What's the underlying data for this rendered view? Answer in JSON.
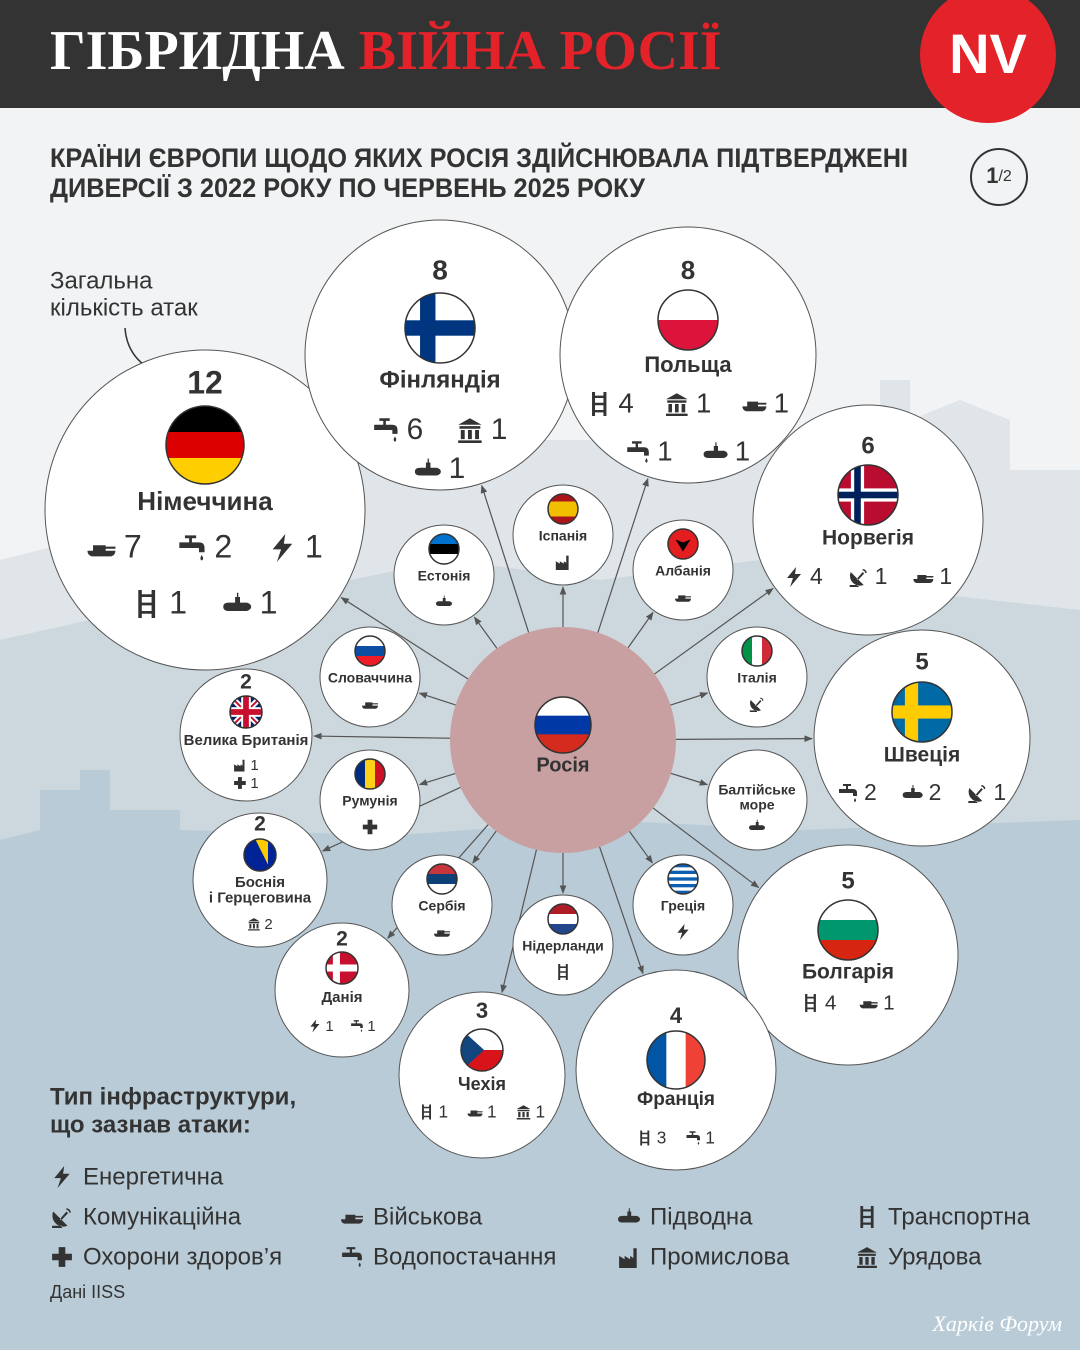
{
  "header": {
    "title_1": "ГІБРИДНА",
    "title_2": "ВІЙНА РОСІЇ",
    "logo": "NV"
  },
  "subtitle": [
    "КРАЇНИ ЄВРОПИ ЩОДО ЯКИХ РОСІЯ ЗДІЙСНЮВАЛА ПІДТВЕРДЖЕНІ",
    "ДИВЕРСІЇ З 2022 РОКУ ПО ЧЕРВЕНЬ 2025 РОКУ"
  ],
  "page": {
    "current": "1",
    "total": "/2"
  },
  "annotation": [
    "Загальна",
    "кількість атак"
  ],
  "center": {
    "name": "Росія"
  },
  "nodes": [
    {
      "name": [
        "Німеччина"
      ],
      "total": 12,
      "attacks": [
        [
          {
            "icon": 2,
            "count": 7
          },
          {
            "icon": 6,
            "count": 2
          },
          {
            "icon": 0,
            "count": 1
          }
        ],
        [
          {
            "icon": 4,
            "count": 1
          },
          {
            "icon": 3,
            "count": 1
          }
        ]
      ]
    },
    {
      "name": [
        "Фінляндія"
      ],
      "total": 8,
      "attacks": [
        [
          {
            "icon": 6,
            "count": 6
          },
          {
            "icon": 8,
            "count": 1
          }
        ],
        [
          {
            "icon": 3,
            "count": 1
          }
        ]
      ]
    },
    {
      "name": [
        "Польща"
      ],
      "total": 8,
      "attacks": [
        [
          {
            "icon": 4,
            "count": 4
          },
          {
            "icon": 8,
            "count": 1
          },
          {
            "icon": 2,
            "count": 1
          }
        ],
        [
          {
            "icon": 6,
            "count": 1
          },
          {
            "icon": 3,
            "count": 1
          }
        ]
      ]
    },
    {
      "name": [
        "Норвегія"
      ],
      "total": 6,
      "attacks": [
        [
          {
            "icon": 0,
            "count": 4
          },
          {
            "icon": 1,
            "count": 1
          },
          {
            "icon": 2,
            "count": 1
          }
        ]
      ]
    },
    {
      "name": [
        "Швеція"
      ],
      "total": 5,
      "attacks": [
        [
          {
            "icon": 6,
            "count": 2
          },
          {
            "icon": 3,
            "count": 2
          },
          {
            "icon": 1,
            "count": 1
          }
        ]
      ]
    },
    {
      "name": [
        "Болгарія"
      ],
      "total": 5,
      "attacks": [
        [
          {
            "icon": 4,
            "count": 4
          },
          {
            "icon": 2,
            "count": 1
          }
        ]
      ]
    },
    {
      "name": [
        "Франція"
      ],
      "total": 4,
      "attacks": [
        [
          {
            "icon": 4,
            "count": 3
          },
          {
            "icon": 6,
            "count": 1
          }
        ]
      ]
    },
    {
      "name": [
        "Чехія"
      ],
      "total": 3,
      "attacks": [
        [
          {
            "icon": 4,
            "count": 1
          },
          {
            "icon": 2,
            "count": 1
          },
          {
            "icon": 8,
            "count": 1
          }
        ]
      ]
    },
    {
      "name": [
        "Данія"
      ],
      "total": 2,
      "attacks": [
        [
          {
            "icon": 0,
            "count": 1
          },
          {
            "icon": 6,
            "count": 1
          }
        ]
      ]
    },
    {
      "name": [
        "Боснія",
        "і Герцеговина"
      ],
      "total": 2,
      "attacks": [
        [
          {
            "icon": 8,
            "count": 2
          }
        ]
      ]
    },
    {
      "name": [
        "Велика Британія"
      ],
      "total": 2,
      "attacks": [
        [
          {
            "icon": 7,
            "count": 1
          }
        ],
        [
          {
            "icon": 5,
            "count": 1
          }
        ]
      ]
    },
    {
      "name": [
        "Естонія"
      ],
      "attacks": [
        [
          {
            "icon": 3
          }
        ]
      ]
    },
    {
      "name": [
        "Іспанія"
      ],
      "attacks": [
        [
          {
            "icon": 7
          }
        ]
      ]
    },
    {
      "name": [
        "Албанія"
      ],
      "attacks": [
        [
          {
            "icon": 2
          }
        ]
      ]
    },
    {
      "name": [
        "Словаччина"
      ],
      "attacks": [
        [
          {
            "icon": 2
          }
        ]
      ]
    },
    {
      "name": [
        "Італія"
      ],
      "attacks": [
        [
          {
            "icon": 1
          }
        ]
      ]
    },
    {
      "name": [
        "Румунія"
      ],
      "attacks": [
        [
          {
            "icon": 5
          }
        ]
      ]
    },
    {
      "name": [
        "Балтійське",
        "море"
      ],
      "attacks": [
        [
          {
            "icon": 3
          }
        ]
      ]
    },
    {
      "name": [
        "Сербія"
      ],
      "attacks": [
        [
          {
            "icon": 2
          }
        ]
      ]
    },
    {
      "name": [
        "Нідерланди"
      ],
      "attacks": [
        [
          {
            "icon": 4
          }
        ]
      ]
    },
    {
      "name": [
        "Греція"
      ],
      "attacks": [
        [
          {
            "icon": 0
          }
        ]
      ]
    }
  ],
  "legend": {
    "title": [
      "Тип інфраструктури,",
      "що зазнав атаки:"
    ],
    "items": [
      "Енергетична",
      "Комунікаційна",
      "Військова",
      "Підводна",
      "Транспортна",
      "Охорони здоров’я",
      "Водопостачання",
      "Промислова",
      "Урядова"
    ]
  },
  "source": "Дані IISS",
  "watermark": "Харків Форум"
}
